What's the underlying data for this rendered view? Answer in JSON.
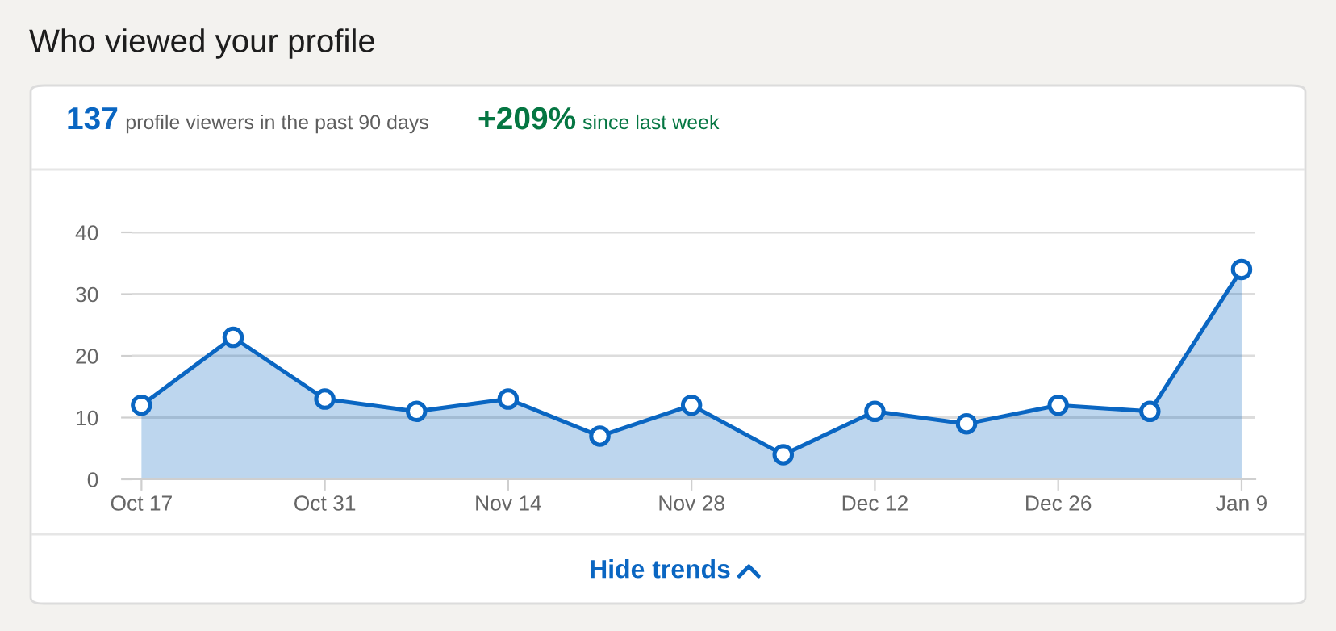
{
  "chart_data": {
    "type": "area",
    "title": "Who viewed your profile",
    "annotations": [
      "137",
      "profile viewers in the past 90 days",
      "+209%",
      "since last week",
      "Hide trends"
    ],
    "categories": [
      "Oct 17",
      null,
      "Oct 31",
      null,
      "Nov 14",
      null,
      "Nov 28",
      null,
      "Dec 12",
      null,
      "Dec 26",
      null,
      "Jan 9"
    ],
    "series": [
      {
        "color": "#0a66c2",
        "values": [
          12,
          23,
          13,
          11,
          13,
          7,
          12,
          4,
          11,
          9,
          12,
          11,
          34
        ]
      }
    ],
    "ylim": [
      0,
      40
    ],
    "yticks": [
      0,
      10,
      20,
      30,
      40
    ],
    "grid": "y",
    "marker": "circle",
    "line_style": "solid"
  }
}
